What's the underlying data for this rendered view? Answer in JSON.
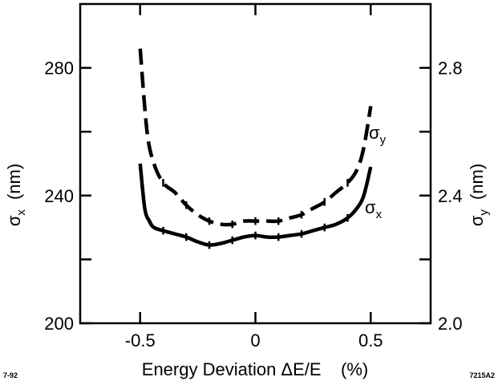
{
  "chart_data": {
    "type": "line",
    "xlabel": "Energy Deviation ΔE/E    (%)",
    "ylabel_left": {
      "symbol": "σ",
      "sub": "x",
      "unit": "(nm)"
    },
    "ylabel_right": {
      "symbol": "σ",
      "sub": "y",
      "unit": "(nm)"
    },
    "xlim": [
      -0.76,
      0.76
    ],
    "ylim_left": [
      200,
      300
    ],
    "ylim_right": [
      2.0,
      3.0
    ],
    "x_ticks": [
      -0.5,
      0,
      0.5
    ],
    "x_tick_labels": [
      "-0.5",
      "0",
      "0.5"
    ],
    "y_left_ticks": [
      200,
      220,
      240,
      260,
      280
    ],
    "y_left_tick_labels": [
      "200",
      "",
      "240",
      "",
      "280"
    ],
    "y_right_ticks": [
      2.0,
      2.2,
      2.4,
      2.6,
      2.8
    ],
    "y_right_tick_labels": [
      "2.0",
      "",
      "2.4",
      "",
      "2.8"
    ],
    "grid": false,
    "series": [
      {
        "name": "σy",
        "label_symbol": "σ",
        "label_sub": "y",
        "axis": "right",
        "style": "dashed",
        "x": [
          -0.5,
          -0.47,
          -0.44,
          -0.4,
          -0.35,
          -0.3,
          -0.25,
          -0.2,
          -0.15,
          -0.1,
          -0.05,
          0,
          0.05,
          0.1,
          0.15,
          0.2,
          0.25,
          0.3,
          0.35,
          0.4,
          0.44,
          0.47,
          0.5
        ],
        "values": [
          2.86,
          2.6,
          2.5,
          2.44,
          2.41,
          2.37,
          2.34,
          2.32,
          2.31,
          2.31,
          2.32,
          2.32,
          2.32,
          2.32,
          2.33,
          2.34,
          2.36,
          2.38,
          2.41,
          2.44,
          2.48,
          2.55,
          2.68
        ],
        "error_bar_x": [
          -0.4,
          -0.3,
          -0.2,
          -0.1,
          0,
          0.1,
          0.2,
          0.3,
          0.4
        ],
        "error_bar_half": 0.012
      },
      {
        "name": "σx",
        "label_symbol": "σ",
        "label_sub": "x",
        "axis": "left",
        "style": "solid",
        "x": [
          -0.5,
          -0.48,
          -0.46,
          -0.44,
          -0.4,
          -0.35,
          -0.3,
          -0.25,
          -0.2,
          -0.15,
          -0.1,
          -0.05,
          0,
          0.05,
          0.1,
          0.15,
          0.2,
          0.25,
          0.3,
          0.35,
          0.4,
          0.44,
          0.47,
          0.5
        ],
        "values": [
          250,
          236,
          232,
          230,
          229,
          228,
          227,
          225.5,
          224.5,
          225,
          226,
          227,
          227.5,
          227,
          227,
          227.5,
          228,
          229,
          230,
          231,
          233,
          236,
          240,
          249
        ],
        "error_bar_x": [
          -0.4,
          -0.3,
          -0.2,
          -0.1,
          0,
          0.1,
          0.2,
          0.3,
          0.4
        ],
        "error_bar_half": 1.2
      }
    ]
  },
  "footer": {
    "left_code": "7-92",
    "right_code": "7215A2"
  }
}
